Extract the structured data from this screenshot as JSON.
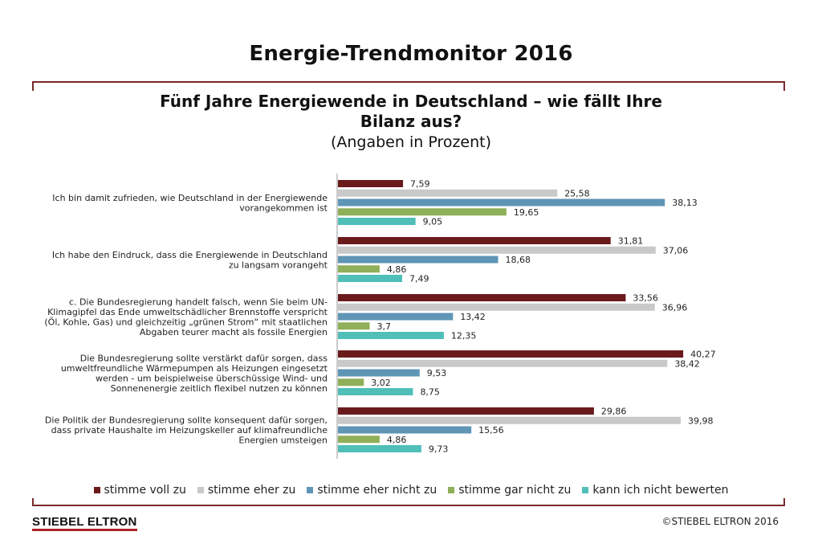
{
  "header": {
    "title": "Energie-Trendmonitor 2016",
    "subtitle_line1": "Fünf Jahre Energiewende in Deutschland – wie fällt Ihre",
    "subtitle_line2": "Bilanz aus?",
    "subtitle_note": "(Angaben in Prozent)"
  },
  "footer": {
    "logo": "STIEBEL ELTRON",
    "copyright": "©STIEBEL ELTRON 2016"
  },
  "colors": {
    "stimme_voll_zu": "#6b1a1c",
    "stimme_eher_zu": "#c9c9c9",
    "stimme_eher_nicht_zu": "#5f95b5",
    "stimme_gar_nicht_zu": "#8faf58",
    "kann_ich_nicht_bewerten": "#4fbfb8",
    "accent_rule": "#7a2a2a"
  },
  "chart_data": {
    "type": "bar",
    "orientation": "horizontal",
    "title": "Fünf Jahre Energiewende in Deutschland – wie fällt Ihre Bilanz aus?",
    "unit_note": "(Angaben in Prozent)",
    "categories": [
      {
        "lines": [
          "Ich bin damit zufrieden, wie Deutschland in der Energiewende",
          "vorangekommen ist"
        ]
      },
      {
        "lines": [
          "Ich habe den Eindruck, dass die Energiewende in Deutschland",
          "zu langsam vorangeht"
        ]
      },
      {
        "lines": [
          "c. Die Bundesregierung handelt falsch, wenn Sie beim UN-",
          "Klimagipfel das Ende umweltschädlicher Brennstoffe  verspricht",
          "(Öl, Kohle, Gas) und gleichzeitig „grünen Strom“ mit staatlichen",
          "Abgaben teurer macht als fossile Energien"
        ]
      },
      {
        "lines": [
          "Die Bundesregierung sollte verstärkt dafür sorgen, dass",
          "umweltfreundliche Wärmepumpen als Heizungen eingesetzt",
          "werden - um beispielweise überschüssige Wind- und",
          "Sonnenenergie zeitlich flexibel nutzen zu können"
        ]
      },
      {
        "lines": [
          "Die Politik der Bundesregierung sollte konsequent dafür sorgen,",
          "dass private Haushalte im Heizungskeller auf klimafreundliche",
          "Energien umsteigen"
        ]
      }
    ],
    "series": [
      {
        "name": "stimme voll zu",
        "color": "#6b1a1c",
        "values": [
          7.59,
          31.81,
          33.56,
          40.27,
          29.86
        ],
        "labels": [
          "7,59",
          "31,81",
          "33,56",
          "40,27",
          "29,86"
        ]
      },
      {
        "name": "stimme eher zu",
        "color": "#c9c9c9",
        "values": [
          25.58,
          37.06,
          36.96,
          38.42,
          39.98
        ],
        "labels": [
          "25,58",
          "37,06",
          "36,96",
          "38,42",
          "39,98"
        ]
      },
      {
        "name": "stimme eher nicht zu",
        "color": "#5f95b5",
        "values": [
          38.13,
          18.68,
          13.42,
          9.53,
          15.56
        ],
        "labels": [
          "38,13",
          "18,68",
          "13,42",
          "9,53",
          "15,56"
        ]
      },
      {
        "name": "stimme gar nicht zu",
        "color": "#8faf58",
        "values": [
          19.65,
          4.86,
          3.7,
          3.02,
          4.86
        ],
        "labels": [
          "19,65",
          "4,86",
          "3,7",
          "3,02",
          "4,86"
        ]
      },
      {
        "name": "kann ich nicht bewerten",
        "color": "#4fbfb8",
        "values": [
          9.05,
          7.49,
          12.35,
          8.75,
          9.73
        ],
        "labels": [
          "9,05",
          "7,49",
          "12,35",
          "8,75",
          "9,73"
        ]
      }
    ],
    "xlim": [
      0,
      45
    ],
    "grid": false,
    "legend_position": "bottom"
  }
}
